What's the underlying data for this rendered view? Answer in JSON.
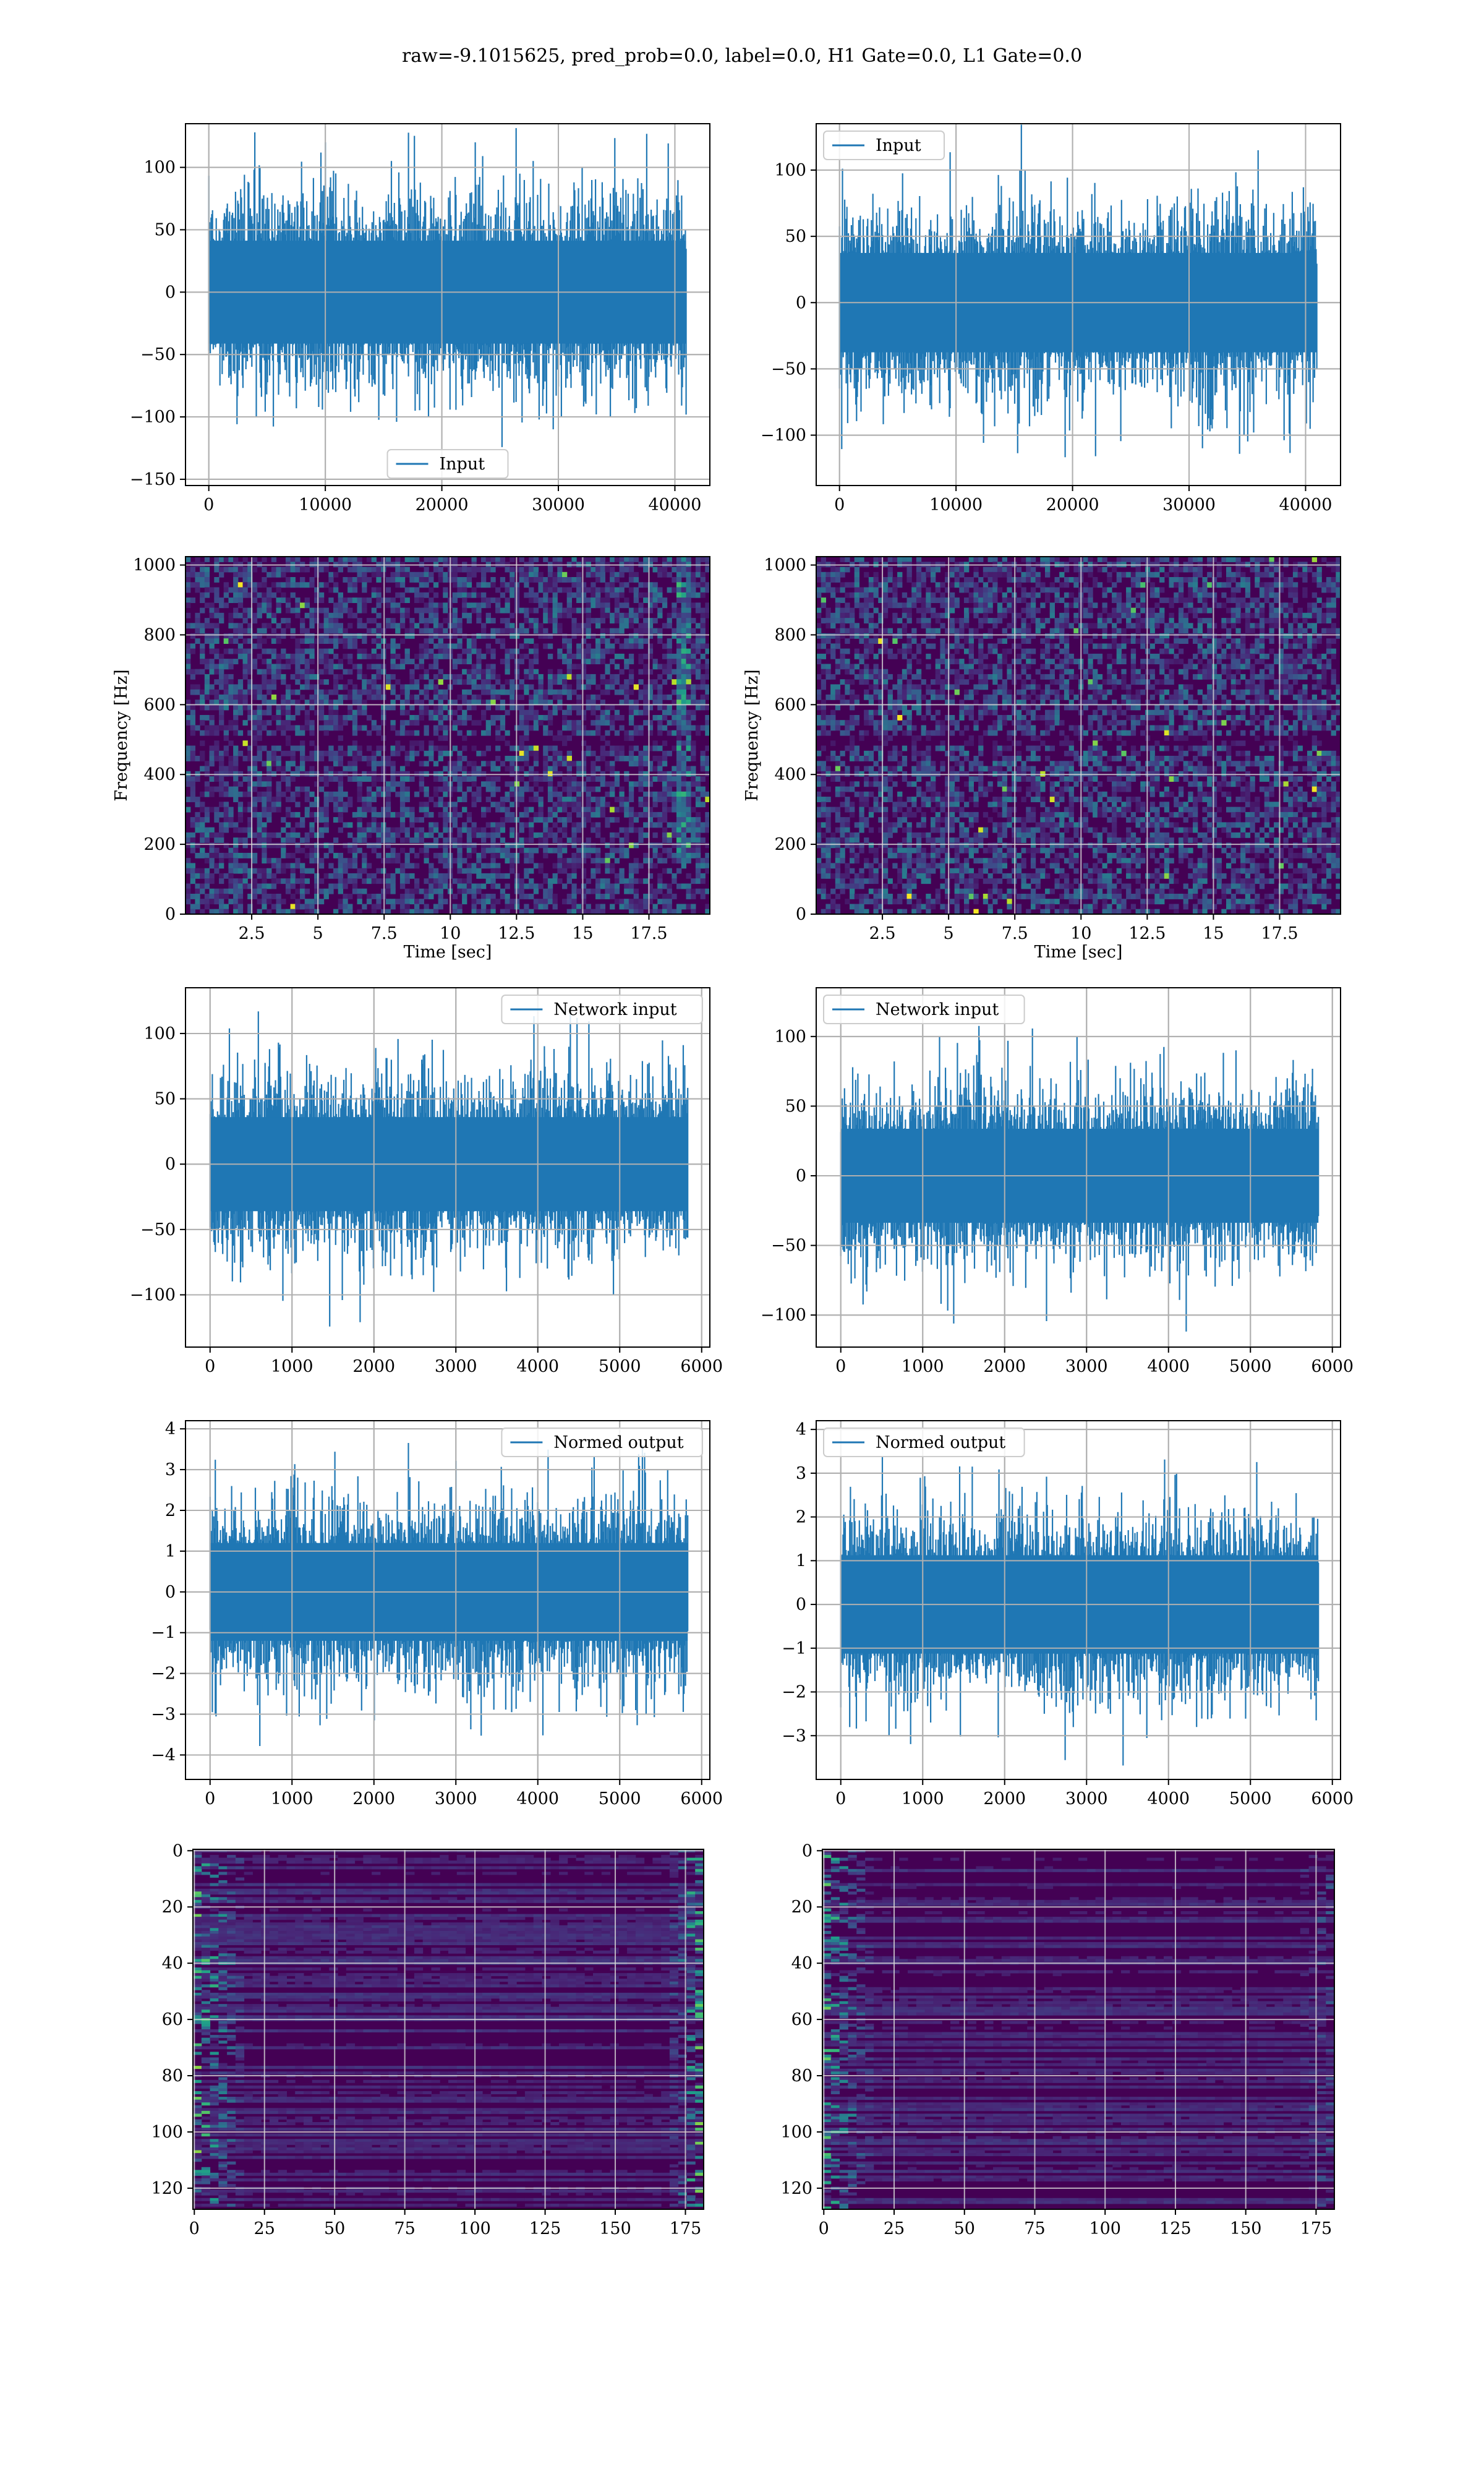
{
  "figure": {
    "title": "raw=-9.1015625, pred_prob=0.0, label=0.0, H1 Gate=0.0, L1 Gate=0.0"
  },
  "colors": {
    "line": "#1f77b4",
    "viridis_dark": "#440154",
    "viridis_yellow": "#fde725"
  },
  "chart_data": [
    {
      "type": "line",
      "panel": "row1-left",
      "series": [
        {
          "name": "Input"
        }
      ],
      "xlim": [
        -2000,
        43000
      ],
      "ylim": [
        -155,
        135
      ],
      "xticks": [
        0,
        10000,
        20000,
        30000,
        40000
      ],
      "yticks": [
        -150,
        -100,
        -50,
        0,
        50,
        100
      ],
      "data_extent": [
        0,
        40960
      ],
      "band": 55,
      "spike": 130,
      "legend": "lower center",
      "grid": true
    },
    {
      "type": "line",
      "panel": "row1-right",
      "series": [
        {
          "name": "Input"
        }
      ],
      "xlim": [
        -2000,
        43000
      ],
      "ylim": [
        -138,
        135
      ],
      "xticks": [
        0,
        10000,
        20000,
        30000,
        40000
      ],
      "yticks": [
        -100,
        -50,
        0,
        50,
        100
      ],
      "data_extent": [
        0,
        40960
      ],
      "band": 50,
      "spike": 120,
      "legend": "upper left",
      "grid": true
    },
    {
      "type": "heatmap",
      "panel": "row2-left",
      "xlabel": "Time [sec]",
      "ylabel": "Frequency [Hz]",
      "xlim": [
        0,
        19.8
      ],
      "ylim": [
        0,
        1024
      ],
      "xticks": [
        2.5,
        5.0,
        7.5,
        10.0,
        12.5,
        15.0,
        17.5
      ],
      "yticks": [
        0,
        200,
        400,
        600,
        800,
        1000
      ],
      "features": [
        "horizontal dark band near 500 Hz",
        "bright vertical streak near 18.5 s"
      ],
      "grid": true
    },
    {
      "type": "heatmap",
      "panel": "row2-right",
      "xlabel": "Time [sec]",
      "ylabel": "Frequency [Hz]",
      "xlim": [
        0,
        19.8
      ],
      "ylim": [
        0,
        1024
      ],
      "xticks": [
        2.5,
        5.0,
        7.5,
        10.0,
        12.5,
        15.0,
        17.5
      ],
      "yticks": [
        0,
        200,
        400,
        600,
        800,
        1000
      ],
      "features": [
        "horizontal dark band near 500 Hz"
      ],
      "grid": true
    },
    {
      "type": "line",
      "panel": "row3-left",
      "series": [
        {
          "name": "Network input"
        }
      ],
      "xlim": [
        -300,
        6100
      ],
      "ylim": [
        -140,
        135
      ],
      "xticks": [
        0,
        1000,
        2000,
        3000,
        4000,
        5000,
        6000
      ],
      "yticks": [
        -100,
        -50,
        0,
        50,
        100
      ],
      "data_extent": [
        0,
        5830
      ],
      "band": 48,
      "spike": 125,
      "legend": "upper right",
      "grid": true
    },
    {
      "type": "line",
      "panel": "row3-right",
      "series": [
        {
          "name": "Network input"
        }
      ],
      "xlim": [
        -300,
        6100
      ],
      "ylim": [
        -123,
        135
      ],
      "xticks": [
        0,
        1000,
        2000,
        3000,
        4000,
        5000,
        6000
      ],
      "yticks": [
        -100,
        -50,
        0,
        50,
        100
      ],
      "data_extent": [
        0,
        5830
      ],
      "band": 45,
      "spike": 115,
      "legend": "upper left",
      "grid": true
    },
    {
      "type": "line",
      "panel": "row4-left",
      "series": [
        {
          "name": "Normed output"
        }
      ],
      "xlim": [
        -300,
        6100
      ],
      "ylim": [
        -4.6,
        4.2
      ],
      "xticks": [
        0,
        1000,
        2000,
        3000,
        4000,
        5000,
        6000
      ],
      "yticks": [
        -4,
        -3,
        -2,
        -1,
        0,
        1,
        2,
        3,
        4
      ],
      "data_extent": [
        0,
        5830
      ],
      "band": 1.6,
      "spike": 4.0,
      "legend": "upper right",
      "grid": true
    },
    {
      "type": "line",
      "panel": "row4-right",
      "series": [
        {
          "name": "Normed output"
        }
      ],
      "xlim": [
        -300,
        6100
      ],
      "ylim": [
        -4.0,
        4.2
      ],
      "xticks": [
        0,
        1000,
        2000,
        3000,
        4000,
        5000,
        6000
      ],
      "yticks": [
        -3,
        -2,
        -1,
        0,
        1,
        2,
        3,
        4
      ],
      "data_extent": [
        0,
        5830
      ],
      "band": 1.5,
      "spike": 3.9,
      "legend": "upper left",
      "grid": true
    },
    {
      "type": "heatmap",
      "panel": "row5-left",
      "xlim": [
        -0.5,
        181.5
      ],
      "ylim": [
        127.5,
        -0.5
      ],
      "xticks": [
        0,
        25,
        50,
        75,
        100,
        125,
        150,
        175
      ],
      "yticks": [
        0,
        20,
        40,
        60,
        80,
        100,
        120
      ],
      "features": [
        "bright activations near left edge",
        "bright activations near right edge"
      ],
      "grid": true
    },
    {
      "type": "heatmap",
      "panel": "row5-right",
      "xlim": [
        -0.5,
        181.5
      ],
      "ylim": [
        127.5,
        -0.5
      ],
      "xticks": [
        0,
        25,
        50,
        75,
        100,
        125,
        150,
        175
      ],
      "yticks": [
        0,
        20,
        40,
        60,
        80,
        100,
        120
      ],
      "features": [
        "bright activations near left edge",
        "faint activations near right edge"
      ],
      "grid": true
    }
  ]
}
